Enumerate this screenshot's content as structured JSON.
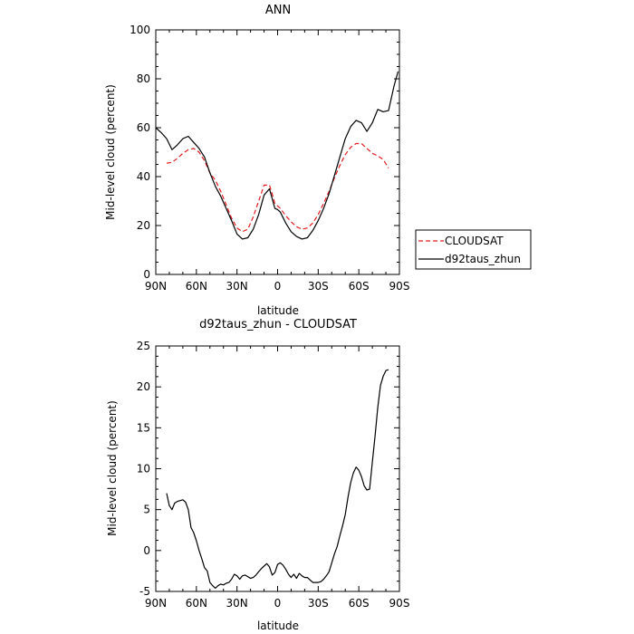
{
  "chart_data": [
    {
      "type": "line",
      "title": "ANN",
      "xlabel": "latitude",
      "ylabel": "Mid-level cloud (percent)",
      "xlim": [
        90,
        -90
      ],
      "ylim": [
        0,
        100
      ],
      "x_ticks": [
        90,
        60,
        30,
        0,
        -30,
        -60,
        -90
      ],
      "x_tick_labels": [
        "90N",
        "60N",
        "30N",
        "0",
        "30S",
        "60S",
        "90S"
      ],
      "y_ticks": [
        0,
        20,
        40,
        60,
        80,
        100
      ],
      "y_tick_labels": [
        "0",
        "20",
        "40",
        "60",
        "80",
        "100"
      ],
      "legend_position": "right",
      "series": [
        {
          "name": "CLOUDSAT",
          "color": "#e41a1c",
          "dash": true,
          "x": [
            82,
            78,
            74,
            70,
            66,
            62,
            58,
            54,
            50,
            46,
            42,
            38,
            34,
            30,
            26,
            22,
            18,
            14,
            10,
            6,
            4,
            2,
            0,
            -2,
            -6,
            -10,
            -14,
            -18,
            -22,
            -26,
            -30,
            -34,
            -38,
            -42,
            -46,
            -50,
            -54,
            -58,
            -62,
            -66,
            -70,
            -74,
            -78,
            -82
          ],
          "y": [
            45.5,
            45.8,
            47.5,
            49.5,
            51,
            51.5,
            50,
            46.5,
            41.5,
            38.5,
            34,
            28.5,
            23,
            19,
            17.5,
            18.5,
            23.5,
            30,
            36.5,
            36.5,
            33,
            29,
            28,
            27,
            24,
            21.5,
            19.5,
            18.5,
            19,
            21,
            24.5,
            29,
            34,
            39.5,
            44.5,
            49,
            52,
            53.5,
            53.5,
            51.5,
            49.5,
            48.5,
            47,
            43.5
          ]
        },
        {
          "name": "d92taus_zhun",
          "color": "#000000",
          "dash": false,
          "x": [
            90,
            86,
            82,
            78,
            74,
            70,
            66,
            62,
            58,
            54,
            50,
            46,
            42,
            38,
            34,
            30,
            26,
            22,
            18,
            14,
            10,
            6,
            4,
            2,
            0,
            -2,
            -6,
            -10,
            -14,
            -18,
            -22,
            -26,
            -30,
            -34,
            -38,
            -42,
            -46,
            -50,
            -54,
            -58,
            -62,
            -66,
            -70,
            -74,
            -78,
            -82,
            -86,
            -89
          ],
          "y": [
            60,
            58,
            55.5,
            51,
            53,
            55.5,
            56.5,
            54,
            51.5,
            48,
            41.5,
            36,
            32,
            27,
            22,
            16.5,
            14.5,
            15,
            18.5,
            24.5,
            32.5,
            35,
            31,
            27,
            26.5,
            25.5,
            21,
            17.5,
            15.5,
            14.5,
            15,
            18,
            22,
            27,
            33,
            40.5,
            48,
            55.5,
            60.5,
            63,
            62,
            58.5,
            62,
            67.5,
            66.5,
            67,
            77,
            83
          ]
        }
      ]
    },
    {
      "type": "line",
      "title": "d92taus_zhun - CLOUDSAT",
      "xlabel": "latitude",
      "ylabel": "Mid-level cloud (percent)",
      "xlim": [
        90,
        -90
      ],
      "ylim": [
        -5,
        25
      ],
      "x_ticks": [
        90,
        60,
        30,
        0,
        -30,
        -60,
        -90
      ],
      "x_tick_labels": [
        "90N",
        "60N",
        "30N",
        "0",
        "30S",
        "60S",
        "90S"
      ],
      "y_ticks": [
        -5,
        0,
        5,
        10,
        15,
        20,
        25
      ],
      "y_tick_labels": [
        "-5",
        "0",
        "5",
        "10",
        "15",
        "20",
        "25"
      ],
      "series": [
        {
          "color": "#000000",
          "dash": false,
          "x": [
            82,
            80,
            78,
            76,
            74,
            72,
            70,
            68,
            66,
            64,
            62,
            60,
            58,
            56,
            54,
            52,
            50,
            48,
            46,
            44,
            42,
            40,
            38,
            36,
            34,
            32,
            30,
            28,
            26,
            24,
            22,
            20,
            18,
            16,
            14,
            12,
            10,
            8,
            6,
            4,
            2,
            0,
            -2,
            -4,
            -6,
            -8,
            -10,
            -12,
            -14,
            -16,
            -18,
            -20,
            -22,
            -24,
            -26,
            -28,
            -30,
            -32,
            -34,
            -36,
            -38,
            -40,
            -42,
            -44,
            -46,
            -48,
            -50,
            -52,
            -54,
            -56,
            -58,
            -60,
            -62,
            -64,
            -66,
            -68,
            -70,
            -72,
            -74,
            -76,
            -78,
            -80,
            -82
          ],
          "y": [
            7,
            5.5,
            5,
            5.8,
            6,
            6.1,
            6.2,
            5.9,
            5,
            2.8,
            2.2,
            1.2,
            0,
            -1,
            -2.1,
            -2.5,
            -3.9,
            -4.3,
            -4.6,
            -4.3,
            -4.1,
            -4.2,
            -4.0,
            -3.9,
            -3.5,
            -2.9,
            -3.1,
            -3.5,
            -3.1,
            -3.0,
            -3.2,
            -3.4,
            -3.3,
            -3.0,
            -2.6,
            -2.2,
            -1.9,
            -1.6,
            -2.0,
            -3.0,
            -2.7,
            -1.7,
            -1.5,
            -1.8,
            -2.3,
            -2.9,
            -3.3,
            -2.9,
            -3.4,
            -2.8,
            -3.1,
            -3.3,
            -3.3,
            -3.6,
            -3.9,
            -3.9,
            -3.9,
            -3.8,
            -3.5,
            -3.1,
            -2.6,
            -1.5,
            -0.4,
            0.5,
            1.8,
            3.0,
            4.4,
            6.5,
            8.3,
            9.5,
            10.2,
            9.8,
            9.0,
            7.9,
            7.4,
            7.5,
            10.8,
            14.0,
            17.5,
            20.2,
            21.3,
            22.0,
            22.1
          ]
        }
      ]
    }
  ]
}
